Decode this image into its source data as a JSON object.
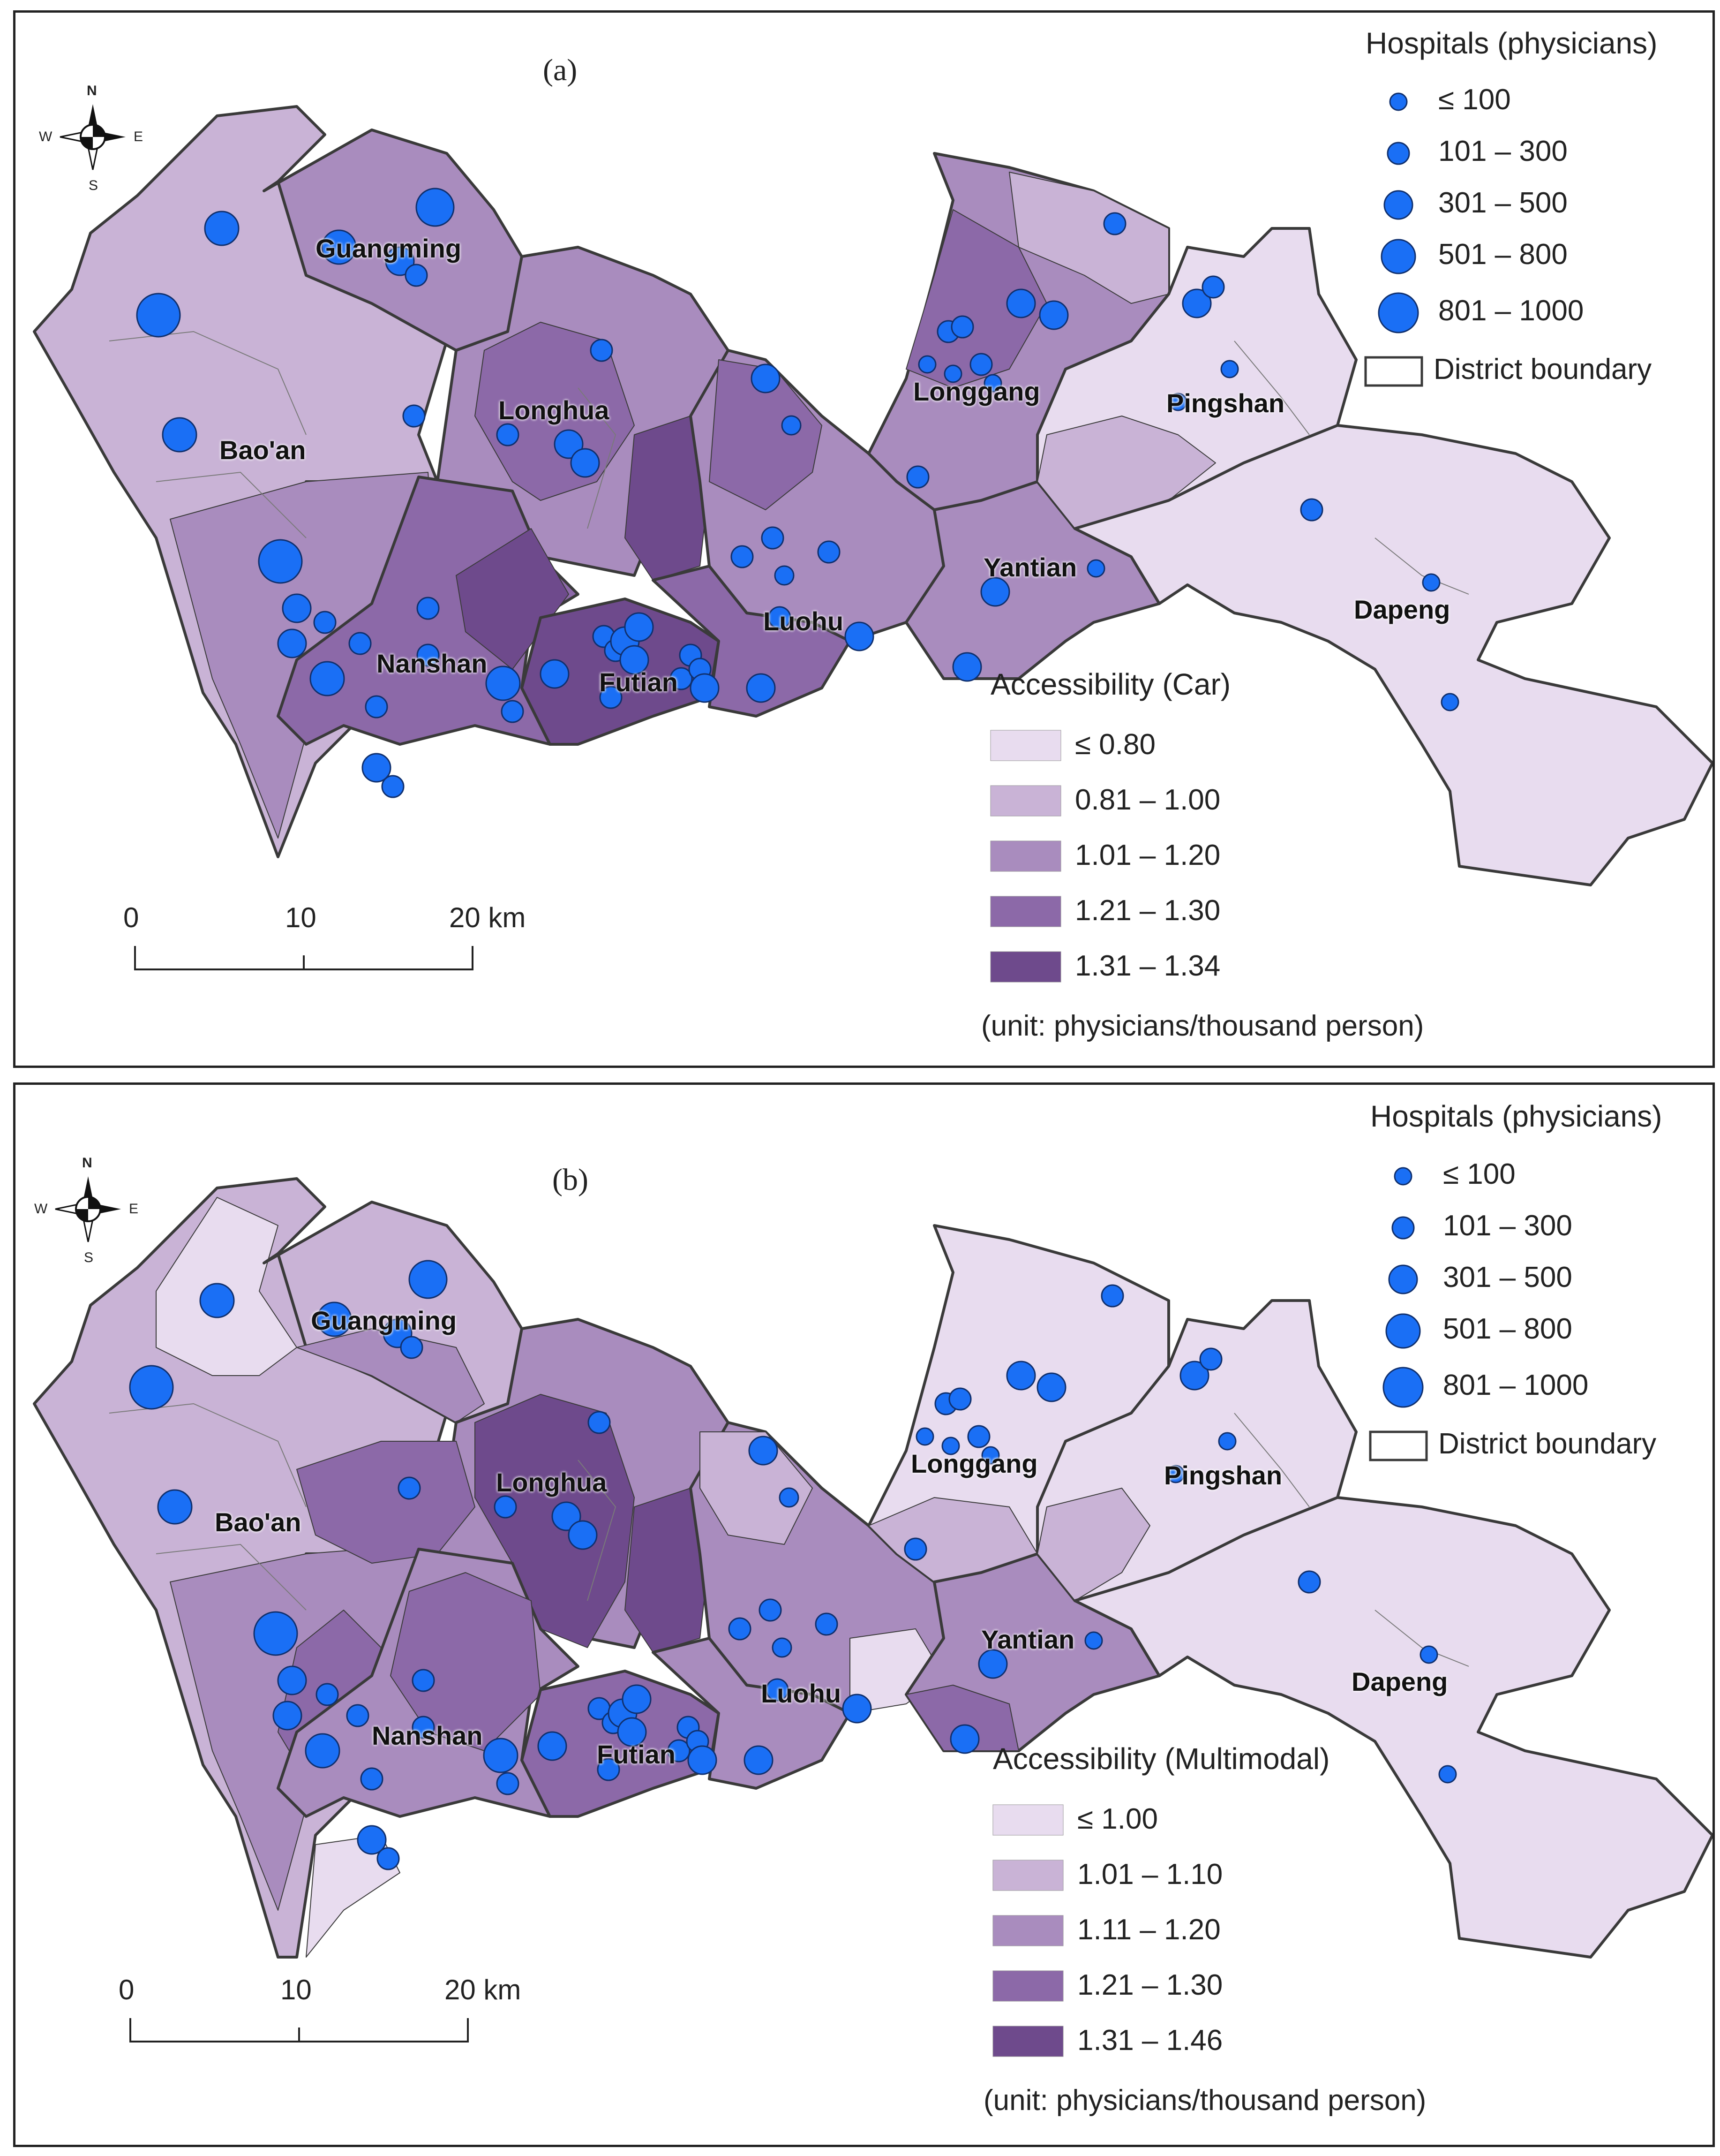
{
  "panels": [
    {
      "label": "(a)",
      "districts": [
        "Guangming",
        "Longhua",
        "Bao'an",
        "Longgang",
        "Pingshan",
        "Yantian",
        "Luohu",
        "Nanshan",
        "Futian",
        "Dapeng"
      ],
      "hospital_legend": {
        "title": "Hospitals (physicians)",
        "classes": [
          "≤ 100",
          "101 – 300",
          "301 – 500",
          "501 – 800",
          "801 – 1000"
        ],
        "boundary_label": "District boundary"
      },
      "accessibility_legend": {
        "title": "Accessibility (Car)",
        "classes": [
          "≤ 0.80",
          "0.81 – 1.00",
          "1.01 – 1.20",
          "1.21 – 1.30",
          "1.31 – 1.34"
        ],
        "unit": "(unit: physicians/thousand person)"
      },
      "scale": {
        "ticks": [
          "0",
          "10",
          "20 km"
        ]
      },
      "compass": [
        "N",
        "S",
        "W",
        "E"
      ]
    },
    {
      "label": "(b)",
      "districts": [
        "Guangming",
        "Longhua",
        "Bao'an",
        "Longgang",
        "Pingshan",
        "Yantian",
        "Luohu",
        "Nanshan",
        "Futian",
        "Dapeng"
      ],
      "hospital_legend": {
        "title": "Hospitals (physicians)",
        "classes": [
          "≤ 100",
          "101 – 300",
          "301 – 500",
          "501 – 800",
          "801 – 1000"
        ],
        "boundary_label": "District boundary"
      },
      "accessibility_legend": {
        "title": "Accessibility (Multimodal)",
        "classes": [
          "≤ 1.00",
          "1.01 – 1.10",
          "1.11 – 1.20",
          "1.21 – 1.30",
          "1.31 – 1.46"
        ],
        "unit": "(unit: physicians/thousand person)"
      },
      "scale": {
        "ticks": [
          "0",
          "10",
          "20 km"
        ]
      },
      "compass": [
        "N",
        "S",
        "W",
        "E"
      ]
    }
  ],
  "colors": {
    "class1": "#e8dcef",
    "class2": "#c9b3d6",
    "class3": "#a98cbe",
    "class4": "#8c69a8",
    "class5": "#6e4a8c",
    "hospital_fill": "#1a6ff5",
    "hospital_stroke": "#10306e",
    "boundary": "#3a3a3a"
  }
}
